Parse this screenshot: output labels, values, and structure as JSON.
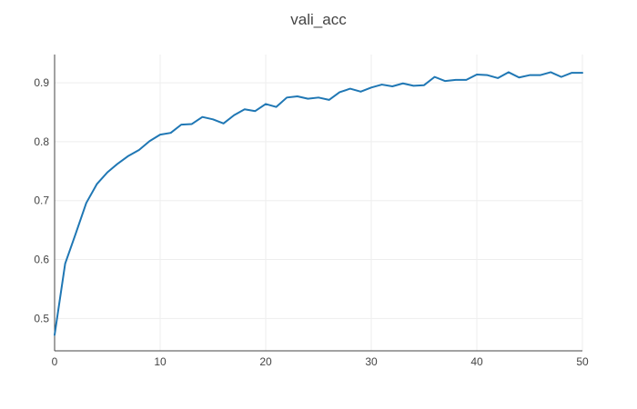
{
  "chart_data": {
    "type": "line",
    "title": "vali_acc",
    "xlabel": "",
    "ylabel": "",
    "xlim": [
      0,
      50
    ],
    "ylim": [
      0.445,
      0.948
    ],
    "x_ticks": [
      0,
      10,
      20,
      30,
      40,
      50
    ],
    "y_ticks": [
      0.5,
      0.6,
      0.7,
      0.8,
      0.9
    ],
    "x_tick_labels": [
      "0",
      "10",
      "20",
      "30",
      "40",
      "50"
    ],
    "y_tick_labels": [
      "0.5",
      "0.6",
      "0.7",
      "0.8",
      "0.9"
    ],
    "grid": true,
    "legend": "none",
    "line_color": "#1f77b4",
    "grid_color": "#eeeeee",
    "axis_color": "#444444",
    "series": [
      {
        "x": [
          0,
          1,
          2,
          3,
          4,
          5,
          6,
          7,
          8,
          9,
          10,
          11,
          12,
          13,
          14,
          15,
          16,
          17,
          18,
          19,
          20,
          21,
          22,
          23,
          24,
          25,
          26,
          27,
          28,
          29,
          30,
          31,
          32,
          33,
          34,
          35,
          36,
          37,
          38,
          39,
          40,
          41,
          42,
          43,
          44,
          45,
          46,
          47,
          48,
          49,
          50
        ],
        "values": [
          0.472,
          0.593,
          0.644,
          0.696,
          0.728,
          0.748,
          0.763,
          0.776,
          0.786,
          0.801,
          0.812,
          0.815,
          0.829,
          0.83,
          0.842,
          0.838,
          0.831,
          0.845,
          0.855,
          0.852,
          0.864,
          0.859,
          0.875,
          0.877,
          0.873,
          0.875,
          0.871,
          0.884,
          0.89,
          0.885,
          0.892,
          0.897,
          0.894,
          0.899,
          0.895,
          0.896,
          0.91,
          0.903,
          0.905,
          0.905,
          0.914,
          0.913,
          0.908,
          0.918,
          0.909,
          0.913,
          0.913,
          0.918,
          0.91,
          0.917,
          0.917
        ]
      }
    ]
  }
}
